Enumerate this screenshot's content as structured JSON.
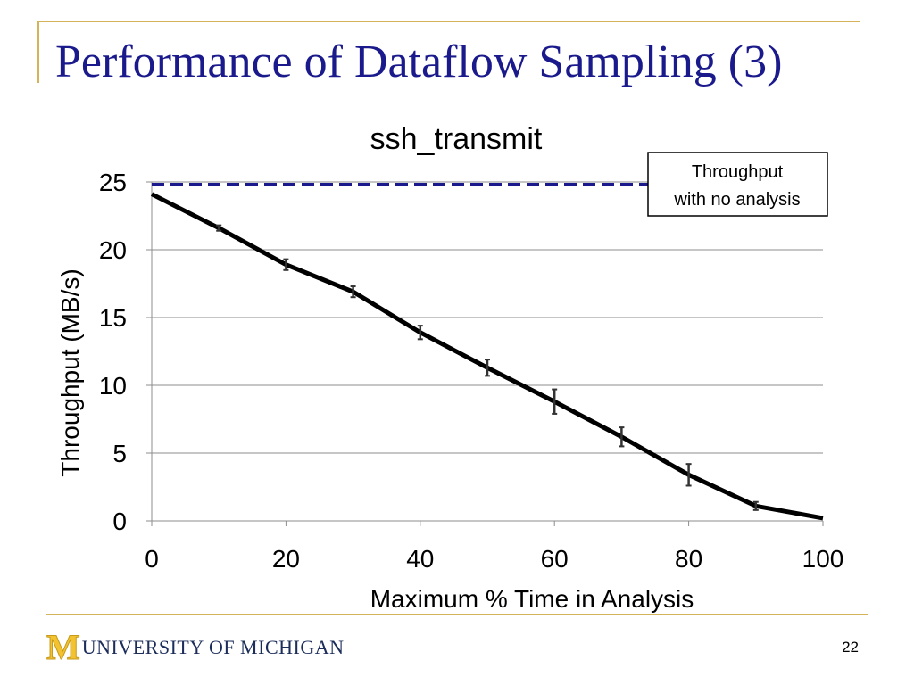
{
  "slide": {
    "title": "Performance of Dataflow Sampling (3)",
    "page_number": "22",
    "logo": {
      "initial": "M",
      "text": "UNIVERSITY OF MICHIGAN"
    }
  },
  "chart_data": {
    "type": "line",
    "title": "ssh_transmit",
    "xlabel": "Maximum % Time in Analysis",
    "ylabel": "Throughput (MB/s)",
    "xlim": [
      0,
      100
    ],
    "ylim": [
      0,
      25
    ],
    "x_ticks": [
      0,
      20,
      40,
      60,
      80,
      100
    ],
    "y_ticks": [
      0,
      5,
      10,
      15,
      20,
      25
    ],
    "grid": "horizontal",
    "series": [
      {
        "x": [
          0,
          10,
          20,
          30,
          40,
          50,
          60,
          70,
          80,
          90,
          100
        ],
        "values": [
          24.1,
          21.6,
          18.9,
          16.9,
          13.9,
          11.3,
          8.8,
          6.2,
          3.4,
          1.1,
          0.2
        ],
        "error": [
          0,
          0.2,
          0.4,
          0.4,
          0.5,
          0.6,
          0.9,
          0.7,
          0.8,
          0.3,
          0
        ],
        "color": "#000000"
      }
    ],
    "reference_line": {
      "value": 24.8,
      "color": "#1a1a8c",
      "style": "dashed"
    },
    "annotation": {
      "text_line1": "Throughput",
      "text_line2": "with no analysis"
    }
  }
}
